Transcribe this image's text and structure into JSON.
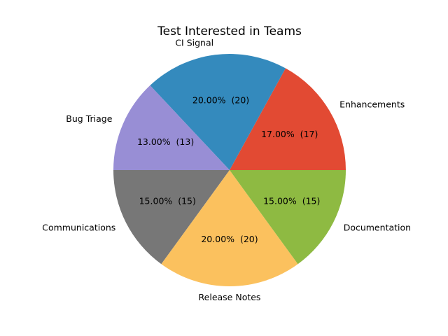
{
  "chart_data": {
    "type": "pie",
    "title": "Test Interested in Teams",
    "slices": [
      {
        "label": "Enhancements",
        "value": 17,
        "pct_label": "17.00%  (17)",
        "color": "#e24a33"
      },
      {
        "label": "CI Signal",
        "value": 20,
        "pct_label": "20.00%  (20)",
        "color": "#348abd"
      },
      {
        "label": "Bug Triage",
        "value": 13,
        "pct_label": "13.00%  (13)",
        "color": "#988ed5"
      },
      {
        "label": "Communications",
        "value": 15,
        "pct_label": "15.00%  (15)",
        "color": "#777777"
      },
      {
        "label": "Release Notes",
        "value": 20,
        "pct_label": "20.00%  (20)",
        "color": "#fbc15e"
      },
      {
        "label": "Documentation",
        "value": 15,
        "pct_label": "15.00%  (15)",
        "color": "#8eba42"
      }
    ],
    "start_angle_deg": 0,
    "direction": "counterclockwise"
  }
}
